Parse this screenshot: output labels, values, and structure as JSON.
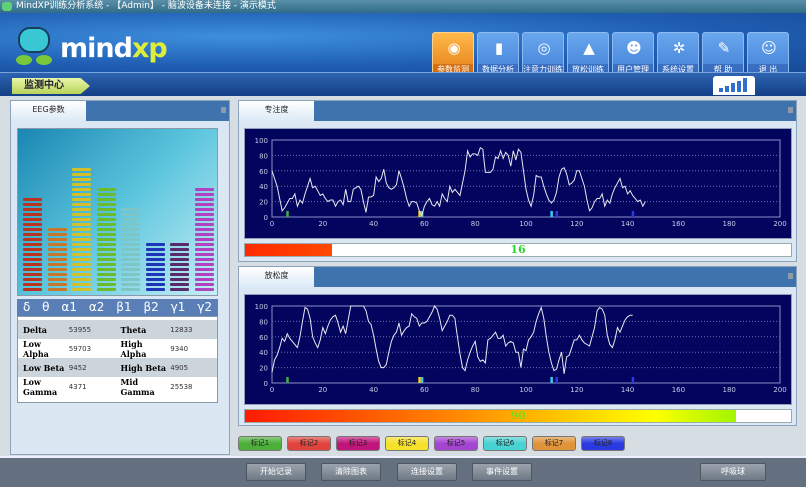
{
  "window": {
    "title": "MindXP训练分析系统 - 【Admin】 - 脑波设备未连接 - 演示模式"
  },
  "logo": {
    "text_a": "mind",
    "text_b": "xp"
  },
  "nav": [
    {
      "label": "参数监测",
      "icon": "globe-icon",
      "active": true
    },
    {
      "label": "数据分析",
      "icon": "bar-chart-icon"
    },
    {
      "label": "注意力训练",
      "icon": "eye-icon"
    },
    {
      "label": "放松训练",
      "icon": "landscape-icon"
    },
    {
      "label": "用户管理",
      "icon": "users-icon"
    },
    {
      "label": "系统设置",
      "icon": "gear-icon"
    },
    {
      "label": "帮 助",
      "icon": "help-icon"
    },
    {
      "label": "退 出",
      "icon": "exit-icon"
    }
  ],
  "section": {
    "title": "监测中心"
  },
  "signal": {
    "level": 5,
    "max": 5
  },
  "eeg": {
    "tab": "EEG参数",
    "bands": [
      {
        "symbol": "δ",
        "level": 19,
        "color": "#b8341f"
      },
      {
        "symbol": "θ",
        "level": 13,
        "color": "#c8762a"
      },
      {
        "symbol": "α1",
        "level": 25,
        "color": "#d2c02a"
      },
      {
        "symbol": "α2",
        "level": 21,
        "color": "#6cbb2e"
      },
      {
        "symbol": "β1",
        "level": 17,
        "color": "#7ec6c6"
      },
      {
        "symbol": "β2",
        "level": 10,
        "color": "#1f35b8"
      },
      {
        "symbol": "γ1",
        "level": 10,
        "color": "#5a2a6a"
      },
      {
        "symbol": "γ2",
        "level": 21,
        "color": "#b043c0"
      }
    ],
    "rows": [
      [
        {
          "k": "Delta",
          "v": "53955"
        },
        {
          "k": "Theta",
          "v": "12833"
        }
      ],
      [
        {
          "k": "Low Alpha",
          "v": "59703"
        },
        {
          "k": "High Alpha",
          "v": "9340"
        }
      ],
      [
        {
          "k": "Low Beta",
          "v": "9452"
        },
        {
          "k": "High Beta",
          "v": "4905"
        }
      ],
      [
        {
          "k": "Low Gamma",
          "v": "4371"
        },
        {
          "k": "Mid Gamma",
          "v": "25538"
        }
      ]
    ]
  },
  "chart_data": [
    {
      "type": "line",
      "title": "专注度",
      "xlim": [
        0,
        200
      ],
      "ylim": [
        0,
        100
      ],
      "xticks": [
        0,
        20,
        40,
        60,
        80,
        100,
        120,
        140,
        160,
        180,
        200
      ],
      "yticks": [
        0,
        20,
        40,
        60,
        80,
        100
      ],
      "grid": true,
      "markers": [
        {
          "x": 6,
          "color": "#3cb043"
        },
        {
          "x": 58,
          "color": "#f5d020"
        },
        {
          "x": 59,
          "color": "#3cc8e8"
        },
        {
          "x": 110,
          "color": "#3cc8e8"
        },
        {
          "x": 112,
          "color": "#2a3ae0"
        },
        {
          "x": 142,
          "color": "#2a3ae0"
        }
      ],
      "values": [
        60,
        50,
        40,
        24,
        8,
        12,
        18,
        24,
        24,
        30,
        14,
        22,
        18,
        30,
        40,
        50,
        38,
        40,
        34,
        28,
        30,
        24,
        20,
        22,
        22,
        14,
        20,
        22,
        16,
        36,
        20,
        20,
        36,
        38,
        40,
        36,
        20,
        6,
        26,
        26,
        28,
        52,
        46,
        50,
        62,
        44,
        38,
        36,
        38,
        42,
        60,
        50,
        38,
        24,
        14,
        20,
        20,
        18,
        8,
        2,
        14,
        20,
        24,
        16,
        14,
        20,
        14,
        30,
        24,
        20,
        40,
        32,
        36,
        32,
        28,
        44,
        60,
        86,
        78,
        82,
        82,
        80,
        90,
        88,
        58,
        58,
        58,
        62,
        78,
        76,
        86,
        76,
        84,
        80,
        66,
        86,
        74,
        88,
        84,
        60,
        36,
        22,
        14,
        28,
        54,
        52,
        52,
        40,
        30,
        22,
        18,
        22,
        32,
        52,
        62,
        64,
        56,
        42,
        44,
        48,
        60,
        60,
        50,
        40,
        22,
        8,
        12,
        20,
        24,
        24,
        30,
        14,
        22,
        18,
        30,
        38,
        44,
        50,
        38,
        40,
        30,
        34,
        28,
        24,
        20,
        22,
        14,
        20
      ],
      "current_value": 16,
      "bar_color": "#ff2a00"
    },
    {
      "type": "line",
      "title": "放松度",
      "xlim": [
        0,
        200
      ],
      "ylim": [
        0,
        100
      ],
      "xticks": [
        0,
        20,
        40,
        60,
        80,
        100,
        120,
        140,
        160,
        180,
        200
      ],
      "yticks": [
        0,
        20,
        40,
        60,
        80,
        100
      ],
      "grid": true,
      "markers": [
        {
          "x": 6,
          "color": "#3cb043"
        },
        {
          "x": 58,
          "color": "#f5d020"
        },
        {
          "x": 59,
          "color": "#3cc8e8"
        },
        {
          "x": 110,
          "color": "#3cc8e8"
        },
        {
          "x": 112,
          "color": "#2a3ae0"
        },
        {
          "x": 142,
          "color": "#2a3ae0"
        }
      ],
      "values": [
        14,
        30,
        36,
        46,
        58,
        54,
        64,
        58,
        54,
        50,
        46,
        60,
        80,
        98,
        96,
        84,
        60,
        52,
        46,
        56,
        72,
        64,
        74,
        82,
        86,
        88,
        78,
        66,
        74,
        64,
        82,
        100,
        100,
        100,
        100,
        100,
        100,
        94,
        80,
        76,
        62,
        44,
        28,
        20,
        20,
        24,
        40,
        54,
        62,
        66,
        78,
        62,
        68,
        72,
        74,
        90,
        86,
        84,
        74,
        78,
        78,
        80,
        86,
        92,
        100,
        96,
        84,
        68,
        74,
        80,
        88,
        88,
        84,
        60,
        38,
        20,
        16,
        30,
        40,
        48,
        54,
        34,
        28,
        30,
        26,
        56,
        58,
        62,
        66,
        58,
        58,
        62,
        48,
        52,
        54,
        52,
        40,
        40,
        20,
        44,
        42,
        56,
        60,
        66,
        80,
        90,
        98,
        84,
        60,
        40,
        26,
        16,
        18,
        30,
        40,
        12,
        34,
        36,
        46,
        56,
        56,
        62,
        56,
        52,
        50,
        48,
        60,
        72,
        94,
        98,
        96,
        88,
        62,
        50,
        46,
        56,
        72,
        66,
        74,
        82,
        86,
        88,
        88
      ],
      "current_value": 90
    }
  ],
  "marker_buttons": [
    {
      "label": "标记1",
      "color": "#4caf3a"
    },
    {
      "label": "标记2",
      "color": "#e0443c"
    },
    {
      "label": "标记3",
      "color": "#c0157a"
    },
    {
      "label": "标记4",
      "color": "#f5e02a"
    },
    {
      "label": "标记5",
      "color": "#a445d0"
    },
    {
      "label": "标记6",
      "color": "#49d2d2"
    },
    {
      "label": "标记7",
      "color": "#e0943a"
    },
    {
      "label": "标记8",
      "color": "#2a3ae0"
    }
  ],
  "actions": {
    "start": "开始记录",
    "clear": "清除图表",
    "connect": "连接设置",
    "events": "事件设置",
    "breath": "呼吸球"
  }
}
